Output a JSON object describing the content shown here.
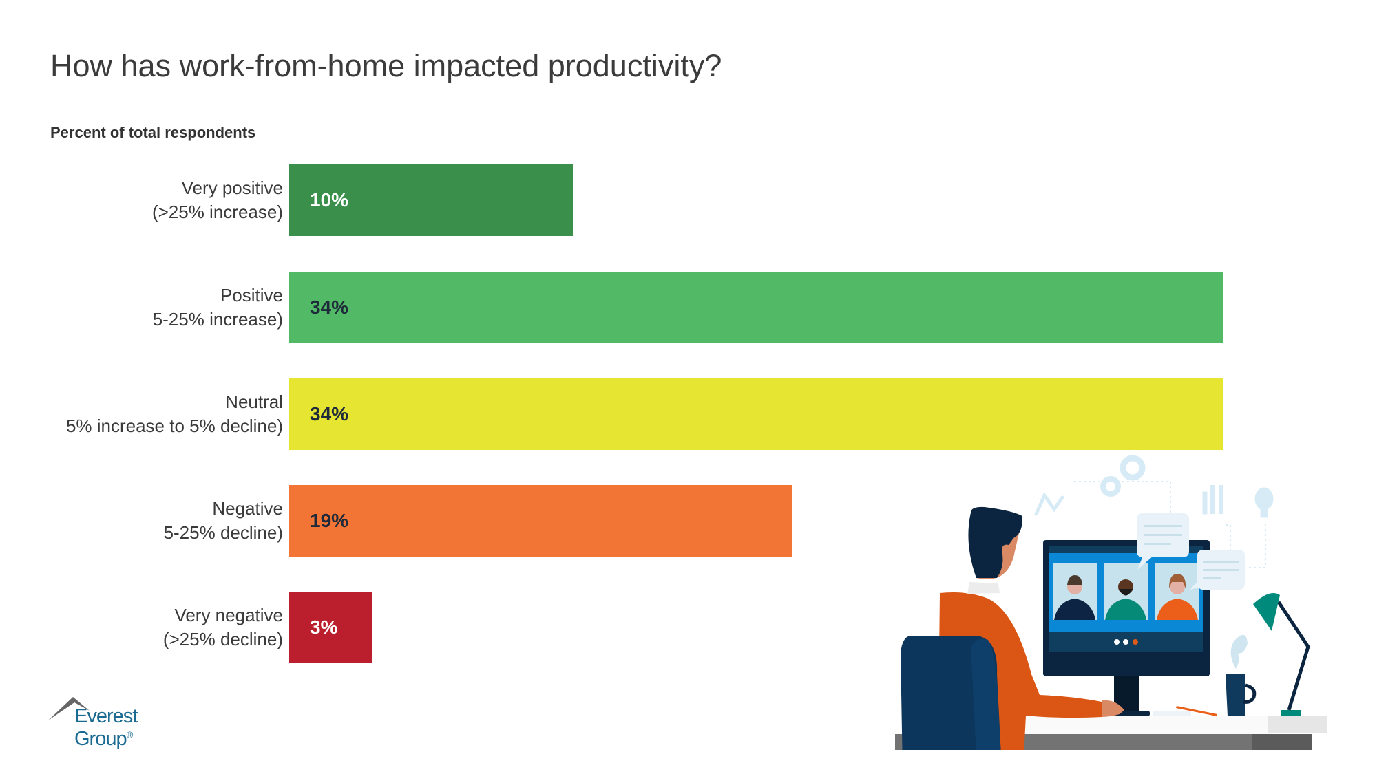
{
  "title": "How has work-from-home impacted productivity?",
  "subtitle": "Percent of total respondents",
  "logo": {
    "name": "Everest Group",
    "mark": "®"
  },
  "chart_data": {
    "type": "bar",
    "orientation": "horizontal",
    "title": "How has work-from-home impacted productivity?",
    "ylabel": "Percent of total respondents",
    "categories": [
      {
        "line1": "Very positive",
        "line2": "(>25% increase)"
      },
      {
        "line1": "Positive",
        "line2": "5-25% increase)"
      },
      {
        "line1": "Neutral",
        "line2": "5% increase to 5% decline)"
      },
      {
        "line1": "Negative",
        "line2": "5-25% decline)"
      },
      {
        "line1": "Very negative",
        "line2": "(>25% decline)"
      }
    ],
    "values": [
      10,
      34,
      34,
      19,
      3
    ],
    "data_labels": [
      "10%",
      "34%",
      "34%",
      "19%",
      "3%"
    ],
    "colors": [
      "#3a8f4a",
      "#52ba66",
      "#e5e532",
      "#f27535",
      "#bb1f2e"
    ],
    "label_colors": [
      "#ffffff",
      "#1e2a3a",
      "#1e2a3a",
      "#1e2a3a",
      "#ffffff"
    ],
    "xlim": [
      0,
      34
    ],
    "grid": false
  }
}
